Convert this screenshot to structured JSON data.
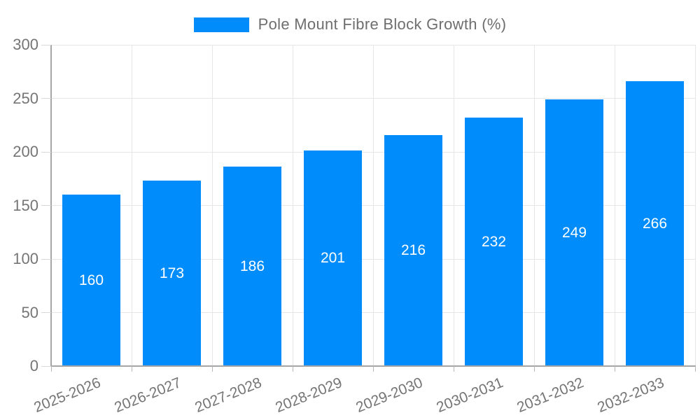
{
  "chart_data": {
    "type": "bar",
    "title": "",
    "series_name": "Pole Mount Fibre Block Growth (%)",
    "categories": [
      "2025-2026",
      "2026-2027",
      "2027-2028",
      "2028-2029",
      "2029-2030",
      "2030-2031",
      "2031-2032",
      "2032-2033"
    ],
    "values": [
      160,
      173,
      186,
      201,
      216,
      232,
      249,
      266
    ],
    "xlabel": "",
    "ylabel": "",
    "ylim": [
      0,
      300
    ],
    "ytick_step": 50,
    "yticks": [
      0,
      50,
      100,
      150,
      200,
      250,
      300
    ],
    "grid": "both",
    "legend_position": "top-center",
    "bar_labels_inside_color": "#ffffff",
    "colors": {
      "bar": "#008cfa",
      "axis_line": "#a6a6a6",
      "grid_line": "#e6e6e6",
      "y_tick_mark": "#d9d9d9",
      "x_tick_mark": "#b8b8b8",
      "tick_label_text": "#757575",
      "legend_text": "#6e6e6e",
      "background": "#ffffff"
    },
    "x_label_rotation_deg": -22
  }
}
